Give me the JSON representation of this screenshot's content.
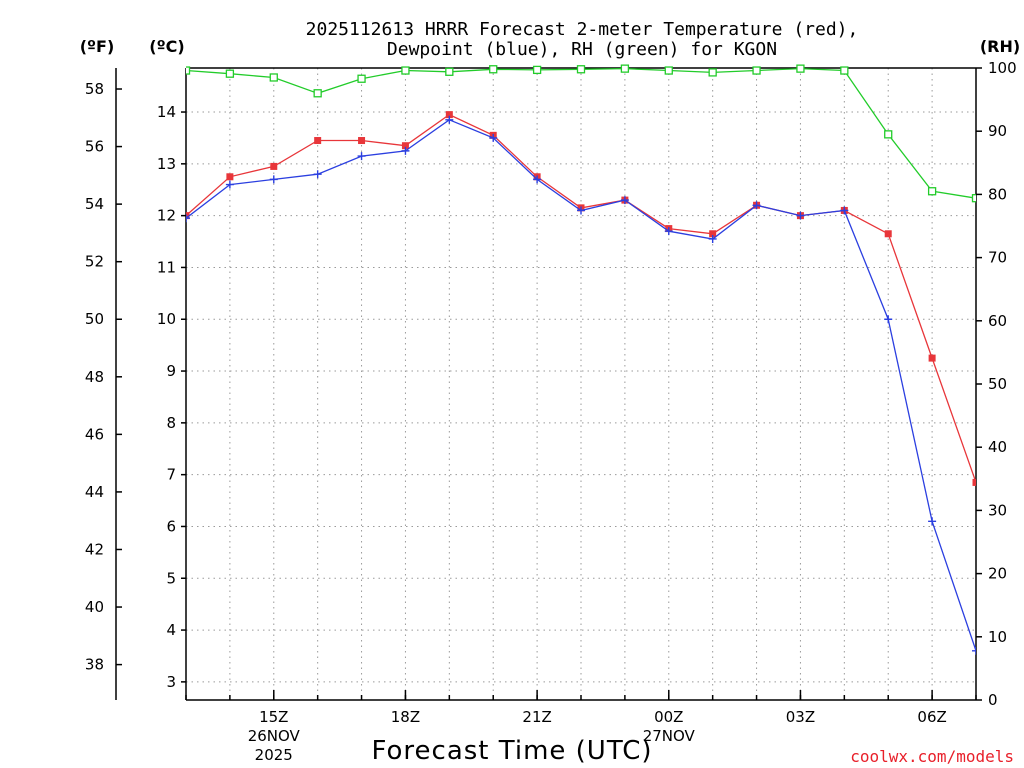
{
  "chart_data": {
    "type": "line",
    "title_lines": [
      "2025112613 HRRR Forecast 2-meter Temperature (red),",
      "Dewpoint (blue), RH (green) for KGON"
    ],
    "units": {
      "fahrenheit": "(ºF)",
      "celsius": "(ºC)",
      "rh": "(RH)"
    },
    "xlabel": "Forecast Time (UTC)",
    "credit": "coolwx.com/models",
    "x_hours": [
      13,
      14,
      15,
      16,
      17,
      18,
      19,
      20,
      21,
      22,
      23,
      24,
      25,
      26,
      27,
      28,
      29,
      30,
      31
    ],
    "x_ticks": [
      {
        "hour": 15,
        "label": "15Z",
        "date": "26NOV",
        "year": "2025"
      },
      {
        "hour": 18,
        "label": "18Z"
      },
      {
        "hour": 21,
        "label": "21Z"
      },
      {
        "hour": 24,
        "label": "00Z",
        "date": "27NOV"
      },
      {
        "hour": 27,
        "label": "03Z"
      },
      {
        "hour": 30,
        "label": "06Z"
      }
    ],
    "xlim": [
      13,
      31
    ],
    "ylim_celsius": [
      2.65,
      14.85
    ],
    "ylim_rh": [
      0,
      100
    ],
    "ticks_celsius": [
      3,
      4,
      5,
      6,
      7,
      8,
      9,
      10,
      11,
      12,
      13,
      14
    ],
    "ticks_fahrenheit": [
      38,
      40,
      42,
      44,
      46,
      48,
      50,
      52,
      54,
      56,
      58
    ],
    "ticks_rh": [
      0,
      10,
      20,
      30,
      40,
      50,
      60,
      70,
      80,
      90,
      100
    ],
    "series": [
      {
        "name": "2-meter Temperature",
        "axis": "celsius",
        "color": "#e8363a",
        "marker": "filled-square",
        "values": [
          12.0,
          12.75,
          12.95,
          13.45,
          13.45,
          13.35,
          13.95,
          13.55,
          12.75,
          12.15,
          12.3,
          11.75,
          11.65,
          12.2,
          12.0,
          12.1,
          11.65,
          9.25,
          6.85
        ]
      },
      {
        "name": "Dewpoint",
        "axis": "celsius",
        "color": "#2b3fe0",
        "marker": "plus",
        "values": [
          11.95,
          12.6,
          12.7,
          12.8,
          13.15,
          13.25,
          13.85,
          13.5,
          12.7,
          12.1,
          12.3,
          11.7,
          11.55,
          12.2,
          12.0,
          12.1,
          10.0,
          6.1,
          3.6
        ]
      },
      {
        "name": "Relative Humidity",
        "axis": "rh",
        "color": "#22cc2a",
        "marker": "open-square",
        "values": [
          99.6,
          99.1,
          98.5,
          96.0,
          98.3,
          99.6,
          99.4,
          99.8,
          99.7,
          99.8,
          99.9,
          99.6,
          99.3,
          99.6,
          99.9,
          99.6,
          89.5,
          80.5,
          79.4
        ]
      }
    ]
  }
}
